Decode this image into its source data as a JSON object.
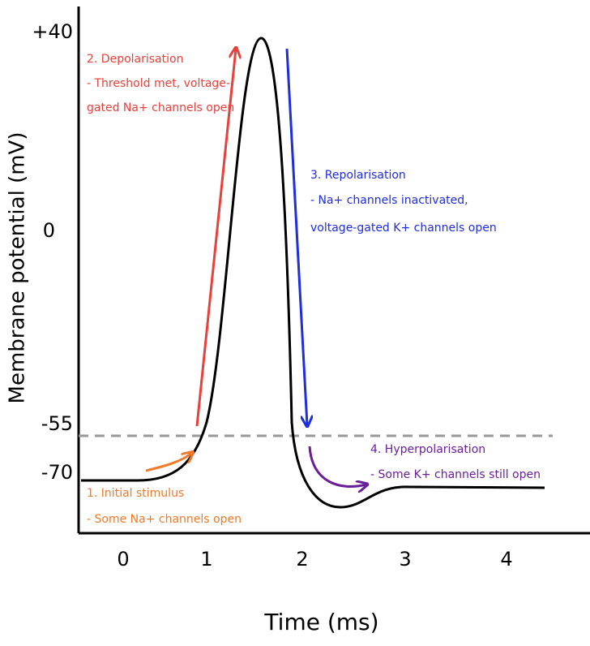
{
  "y_axis": {
    "title": "Membrane potential (mV)",
    "ticks": [
      "+40",
      "0",
      "-55",
      "-70"
    ]
  },
  "x_axis": {
    "title": "Time (ms)",
    "ticks": [
      "0",
      "1",
      "2",
      "3",
      "4"
    ]
  },
  "annotations": [
    {
      "lines": [
        "2. Depolarisation",
        "- Threshold met, voltage-",
        "gated Na+ channels open"
      ]
    },
    {
      "lines": [
        "3. Repolarisation",
        "- Na+ channels inactivated,",
        "voltage-gated K+ channels open"
      ]
    },
    {
      "lines": [
        "4. Hyperpolarisation",
        "- Some K+ channels still open"
      ]
    },
    {
      "lines": [
        "1. Initial stimulus",
        "- Some Na+ channels open"
      ]
    }
  ]
}
